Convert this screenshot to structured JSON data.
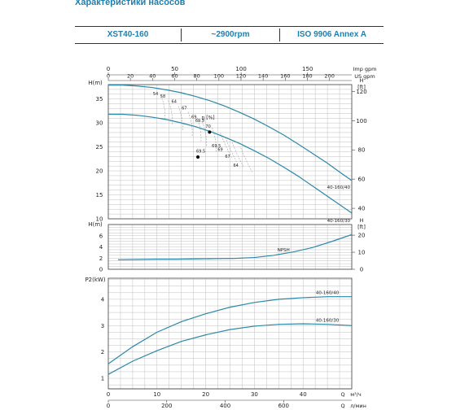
{
  "title": "Характеристики насосов",
  "header": {
    "model": "XST40-160",
    "speed": "~2900rpm",
    "standard": "ISO 9906   Annex A"
  },
  "colors": {
    "curve": "#2b88a8",
    "grid": "#bfbfbf",
    "title": "#1f7fae"
  },
  "chart_data": [
    {
      "type": "line",
      "name": "head",
      "xlabel": "",
      "ylabel": "H(m)",
      "y2label": "H [ft]",
      "x": {
        "label": "м³/ч",
        "range": [
          0,
          50
        ]
      },
      "top_axes": [
        {
          "label": "Imp gpm",
          "range": [
            0,
            200
          ],
          "ticks": [
            "0",
            "50",
            "100",
            "150",
            "200"
          ],
          "step": 50
        },
        {
          "label": "US gpm",
          "range": [
            0,
            200
          ],
          "ticks": [
            "0",
            "20",
            "40",
            "60",
            "80",
            "100",
            "120",
            "140",
            "160",
            "180",
            "200"
          ],
          "step": 20
        }
      ],
      "ylim": [
        10,
        38
      ],
      "y_ticks": [
        10,
        15,
        20,
        25,
        30,
        35
      ],
      "y2_ticks": [
        40,
        60,
        80,
        100,
        120
      ],
      "eta_label": "η [%]",
      "series": [
        {
          "name": "40-160/40",
          "x": [
            0,
            3,
            6,
            9,
            12,
            15,
            18,
            21,
            24,
            27,
            30,
            33,
            36,
            39,
            42,
            45,
            48,
            50
          ],
          "y": [
            37.9,
            37.9,
            37.7,
            37.4,
            36.9,
            36.3,
            35.5,
            34.6,
            33.5,
            32.2,
            30.8,
            29.2,
            27.5,
            25.6,
            23.6,
            21.6,
            19.4,
            18.0
          ]
        },
        {
          "name": "40-160/30",
          "x": [
            0,
            3,
            6,
            9,
            12,
            15,
            18,
            21,
            24,
            27,
            30,
            33,
            36,
            39,
            42,
            45,
            48,
            50
          ],
          "y": [
            31.8,
            31.8,
            31.6,
            31.2,
            30.7,
            30.0,
            29.2,
            28.2,
            27.0,
            25.7,
            24.2,
            22.6,
            20.8,
            18.9,
            16.8,
            14.7,
            12.6,
            11.2
          ]
        }
      ],
      "eff_labels": [
        {
          "text": "54",
          "x": 9.7,
          "y": 35.8
        },
        {
          "text": "58",
          "x": 11.2,
          "y": 35.3
        },
        {
          "text": "64",
          "x": 13.5,
          "y": 34.2
        },
        {
          "text": "67",
          "x": 15.6,
          "y": 32.8
        },
        {
          "text": "69",
          "x": 17.6,
          "y": 31.0
        },
        {
          "text": "69.5",
          "x": 18.8,
          "y": 30.2
        },
        {
          "text": "70",
          "x": 20.5,
          "y": 29.0
        },
        {
          "text": "69.5",
          "x": 22.2,
          "y": 24.9
        },
        {
          "text": "69",
          "x": 23.0,
          "y": 24.2
        },
        {
          "text": "67",
          "x": 24.5,
          "y": 22.7
        },
        {
          "text": "64",
          "x": 26.2,
          "y": 20.9
        },
        {
          "text": "69.5",
          "x": 19.0,
          "y": 23.8
        }
      ],
      "bep_points": [
        {
          "x": 20.8,
          "y": 28.1
        },
        {
          "x": 18.4,
          "y": 22.9
        }
      ]
    },
    {
      "type": "line",
      "name": "npsh",
      "ylabel": "H(m)",
      "y2label": "H [ft]",
      "ylim": [
        0,
        8
      ],
      "y_ticks": [
        0,
        2,
        4,
        6
      ],
      "y2_ticks": [
        0,
        10,
        20
      ],
      "series": [
        {
          "name": "NPSH",
          "x": [
            2,
            6,
            10,
            14,
            18,
            22,
            26,
            30,
            34,
            38,
            42,
            46,
            50
          ],
          "y": [
            1.7,
            1.75,
            1.8,
            1.8,
            1.85,
            1.9,
            1.95,
            2.1,
            2.5,
            3.1,
            3.9,
            5.0,
            6.2
          ]
        }
      ]
    },
    {
      "type": "line",
      "name": "power",
      "ylabel": "P2(kW)",
      "ylim": [
        0.6,
        4.8
      ],
      "y_ticks": [
        1,
        2,
        3,
        4
      ],
      "x_ticks_m3h": [
        0,
        10,
        20,
        30,
        40
      ],
      "x_ticks_lmin": [
        0,
        200,
        400,
        600
      ],
      "x_label_m3h": "м³/ч",
      "x_label_lmin": "л/мин",
      "x_axis_q": "Q",
      "series": [
        {
          "name": "40-160/40",
          "x": [
            0,
            5,
            10,
            15,
            20,
            25,
            30,
            35,
            40,
            45,
            50
          ],
          "y": [
            1.55,
            2.2,
            2.75,
            3.15,
            3.45,
            3.7,
            3.88,
            4.0,
            4.06,
            4.1,
            4.1
          ]
        },
        {
          "name": "40-160/30",
          "x": [
            0,
            5,
            10,
            15,
            20,
            25,
            30,
            35,
            40,
            45,
            50
          ],
          "y": [
            1.15,
            1.65,
            2.05,
            2.4,
            2.65,
            2.85,
            2.98,
            3.05,
            3.07,
            3.05,
            3.0
          ]
        }
      ]
    }
  ]
}
